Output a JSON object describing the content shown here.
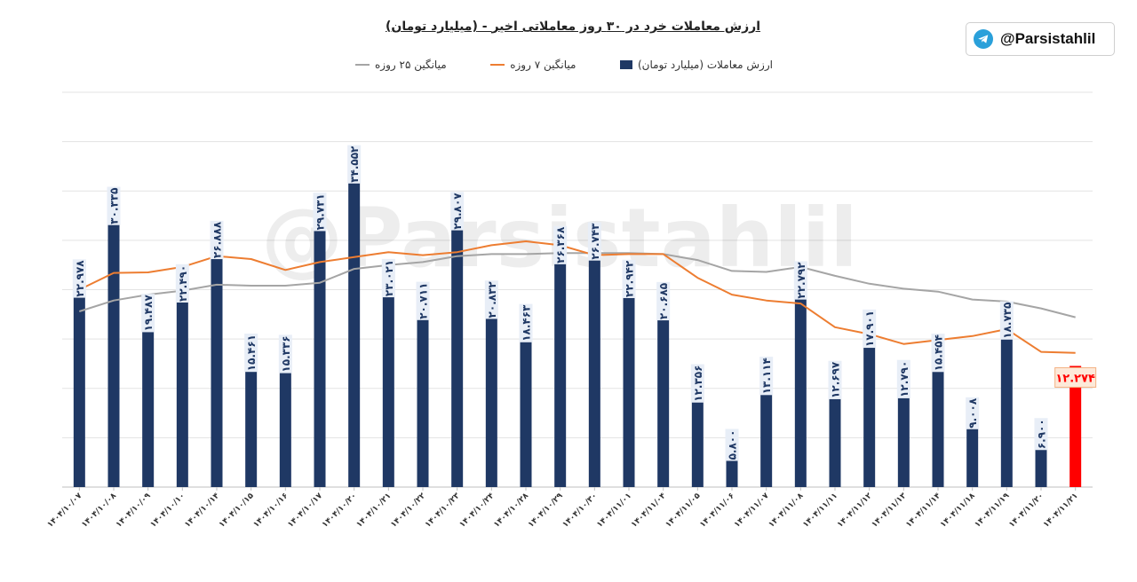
{
  "title": {
    "main": "ارزش معاملات خرد در ۳۰ روز معاملاتی اخیر",
    "sep": " - ",
    "sub": "(میلیارد تومان)"
  },
  "badge": {
    "icon": "telegram-icon",
    "text": "@Parsistahlil"
  },
  "watermark": "@Parsistahlil",
  "chart_data": {
    "type": "bar",
    "categories": [
      "۱۴۰۴/۱۰/۰۷",
      "۱۴۰۴/۱۰/۰۸",
      "۱۴۰۴/۱۰/۰۹",
      "۱۴۰۴/۱۰/۱۰",
      "۱۴۰۴/۱۰/۱۴",
      "۱۴۰۴/۱۰/۱۵",
      "۱۴۰۴/۱۰/۱۶",
      "۱۴۰۴/۱۰/۱۷",
      "۱۴۰۴/۱۰/۲۰",
      "۱۴۰۴/۱۰/۲۱",
      "۱۴۰۴/۱۰/۲۲",
      "۱۴۰۴/۱۰/۲۳",
      "۱۴۰۴/۱۰/۲۴",
      "۱۴۰۴/۱۰/۲۸",
      "۱۴۰۴/۱۰/۲۹",
      "۱۴۰۴/۱۰/۳۰",
      "۱۴۰۴/۱۱/۰۱",
      "۱۴۰۴/۱۱/۰۴",
      "۱۴۰۴/۱۱/۰۵",
      "۱۴۰۴/۱۱/۰۶",
      "۱۴۰۴/۱۱/۰۷",
      "۱۴۰۴/۱۱/۰۸",
      "۱۴۰۴/۱۱/۱۱",
      "۱۴۰۴/۱۱/۱۲",
      "۱۴۰۴/۱۱/۱۳",
      "۱۴۰۴/۱۱/۱۴",
      "۱۴۰۴/۱۱/۱۸",
      "۱۴۰۴/۱۱/۱۹",
      "۱۴۰۴/۱۱/۲۰",
      "۱۴۰۴/۱۱/۲۱"
    ],
    "ylim": [
      0,
      40000
    ],
    "grid": true,
    "legend_position": "top",
    "series": [
      {
        "name": "ارزش معاملات (میلیارد تومان)",
        "kind": "bar",
        "color": "#1f3864",
        "highlight_last_color": "#ff0000",
        "values": [
          22978,
          30335,
          19487,
          22490,
          26888,
          15461,
          15336,
          29731,
          34552,
          23021,
          20711,
          29807,
          20832,
          18463,
          26368,
          26743,
          22942,
          20685,
          12356,
          5800,
          13114,
          22792,
          12697,
          17901,
          12790,
          15454,
          9008,
          18735,
          6900,
          12274
        ],
        "labels": [
          "۲۲.۹۷۸",
          "۳۰.۳۳۵",
          "۱۹.۴۸۷",
          "۲۲.۴۹۰",
          "۲۶.۸۸۸",
          "۱۵.۴۶۱",
          "۱۵.۳۳۶",
          "۲۹.۷۳۱",
          "۳۴.۵۵۲",
          "۲۳.۰۲۱",
          "۲۰.۷۱۱",
          "۲۹.۸۰۷",
          "۲۰.۸۳۲",
          "۱۸.۴۶۳",
          "۲۶.۳۶۸",
          "۲۶.۷۴۳",
          "۲۲.۹۴۲",
          "۲۰.۶۸۵",
          "۱۲.۳۵۶",
          "۵.۸۰۰",
          "۱۳.۱۱۴",
          "۲۲.۷۹۲",
          "۱۲.۶۹۷",
          "۱۷.۹۰۱",
          "۱۲.۷۹۰",
          "۱۵.۴۵۴",
          "۹.۰۰۸",
          "۱۸.۷۳۵",
          "۶.۹۰۰",
          "۱۲.۲۷۴"
        ]
      },
      {
        "name": "میانگین ۷ روزه",
        "kind": "line",
        "color": "#ed7d31",
        "values": [
          20000,
          21700,
          21750,
          22300,
          23400,
          23100,
          22000,
          22800,
          23300,
          23800,
          23500,
          23800,
          24500,
          24900,
          24500,
          23500,
          23600,
          23600,
          21200,
          19500,
          18900,
          18600,
          16200,
          15500,
          14500,
          14900,
          15300,
          16000,
          13700,
          13600
        ]
      },
      {
        "name": "میانگین ۲۵ روزه",
        "kind": "line",
        "color": "#a5a5a5",
        "values": [
          17800,
          18900,
          19500,
          19900,
          20500,
          20400,
          20400,
          20700,
          22100,
          22500,
          22800,
          23400,
          23600,
          23600,
          23700,
          23700,
          23700,
          23600,
          23000,
          21900,
          21800,
          22300,
          21400,
          20600,
          20100,
          19800,
          19000,
          18800,
          18100,
          17200
        ]
      }
    ]
  }
}
